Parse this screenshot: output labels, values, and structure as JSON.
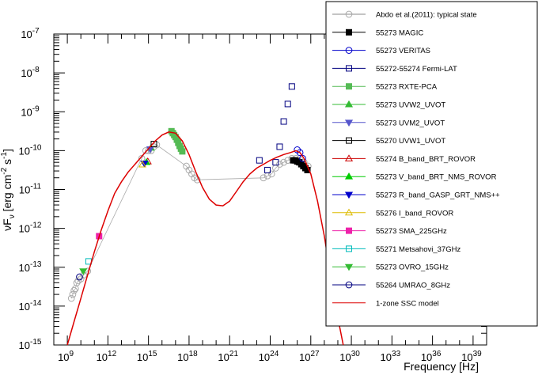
{
  "chart_data": {
    "type": "scatter",
    "title": "",
    "xlabel": "Frequency [Hz]",
    "ylabel_parts": [
      "νF",
      "ν",
      " [erg cm",
      "-2",
      " s",
      "-1",
      "]"
    ],
    "x_log10_range": [
      8,
      40
    ],
    "y_log10_range": [
      -15,
      -7
    ],
    "x_ticks": [
      {
        "base": "10",
        "exp": "9",
        "log": 9
      },
      {
        "base": "10",
        "exp": "12",
        "log": 12
      },
      {
        "base": "10",
        "exp": "15",
        "log": 15
      },
      {
        "base": "10",
        "exp": "18",
        "log": 18
      },
      {
        "base": "10",
        "exp": "21",
        "log": 21
      },
      {
        "base": "10",
        "exp": "24",
        "log": 24
      },
      {
        "base": "10",
        "exp": "27",
        "log": 27
      },
      {
        "base": "10",
        "exp": "30",
        "log": 30
      },
      {
        "base": "10",
        "exp": "33",
        "log": 33
      },
      {
        "base": "10",
        "exp": "36",
        "log": 36
      },
      {
        "base": "10",
        "exp": "39",
        "log": 39
      }
    ],
    "y_ticks": [
      {
        "base": "10",
        "exp": "-15",
        "log": -15
      },
      {
        "base": "10",
        "exp": "-14",
        "log": -14
      },
      {
        "base": "10",
        "exp": "-13",
        "log": -13
      },
      {
        "base": "10",
        "exp": "-12",
        "log": -12
      },
      {
        "base": "10",
        "exp": "-11",
        "log": -11
      },
      {
        "base": "10",
        "exp": "-10",
        "log": -10
      },
      {
        "base": "10",
        "exp": "-9",
        "log": -9
      },
      {
        "base": "10",
        "exp": "-8",
        "log": -8
      },
      {
        "base": "10",
        "exp": "-7",
        "log": -7
      }
    ],
    "legend_placement": "top-right",
    "grid": false,
    "series": [
      {
        "name": "Abdo et al.(2011): typical state",
        "marker": "circle-open",
        "color": "#aaaaaa",
        "line": true,
        "points": [
          [
            9.3,
            -13.8
          ],
          [
            9.4,
            -13.7
          ],
          [
            9.5,
            -13.6
          ],
          [
            9.6,
            -13.55
          ],
          [
            9.7,
            -13.4
          ],
          [
            9.8,
            -13.35
          ],
          [
            10.0,
            -13.3
          ],
          [
            10.2,
            -13.2
          ],
          [
            10.5,
            -13.1
          ],
          [
            14.5,
            -10.2
          ],
          [
            14.8,
            -10.0
          ],
          [
            15.0,
            -10.0
          ],
          [
            15.2,
            -10.0
          ],
          [
            15.4,
            -9.9
          ],
          [
            15.6,
            -9.85
          ],
          [
            17.8,
            -10.4
          ],
          [
            18.0,
            -10.5
          ],
          [
            18.2,
            -10.6
          ],
          [
            18.4,
            -10.7
          ],
          [
            18.6,
            -10.75
          ],
          [
            23.5,
            -10.7
          ],
          [
            23.8,
            -10.65
          ],
          [
            24.1,
            -10.6
          ],
          [
            24.4,
            -10.45
          ],
          [
            24.7,
            -10.35
          ],
          [
            25.0,
            -10.3
          ],
          [
            25.3,
            -10.25
          ],
          [
            25.6,
            -10.2
          ],
          [
            25.9,
            -10.2
          ],
          [
            26.2,
            -10.25
          ],
          [
            26.5,
            -10.3
          ],
          [
            26.8,
            -10.4
          ]
        ]
      },
      {
        "name": "55273 MAGIC",
        "marker": "square-filled",
        "color": "#000000",
        "points": [
          [
            25.7,
            -10.25
          ],
          [
            25.85,
            -10.25
          ],
          [
            26.0,
            -10.28
          ],
          [
            26.15,
            -10.3
          ],
          [
            26.3,
            -10.35
          ],
          [
            26.45,
            -10.4
          ],
          [
            26.6,
            -10.45
          ],
          [
            26.75,
            -10.5
          ]
        ]
      },
      {
        "name": "55273 VERITAS",
        "marker": "circle-open",
        "color": "#0000cc",
        "points": [
          [
            26.0,
            -9.98
          ],
          [
            26.2,
            -10.05
          ],
          [
            26.4,
            -10.2
          ]
        ]
      },
      {
        "name": "55272-55274 Fermi-LAT",
        "marker": "square-open",
        "color": "#000080",
        "points": [
          [
            23.2,
            -10.25
          ],
          [
            23.8,
            -10.5
          ],
          [
            24.4,
            -10.3
          ],
          [
            24.7,
            -9.9
          ],
          [
            25.0,
            -9.25
          ],
          [
            25.3,
            -8.8
          ],
          [
            25.6,
            -8.35
          ]
        ]
      },
      {
        "name": "55273 RXTE-PCA",
        "marker": "square-filled",
        "color": "#55bb55",
        "points": [
          [
            16.7,
            -9.5
          ],
          [
            16.8,
            -9.55
          ],
          [
            16.9,
            -9.6
          ],
          [
            17.0,
            -9.65
          ],
          [
            17.1,
            -9.72
          ],
          [
            17.2,
            -9.8
          ],
          [
            17.3,
            -9.88
          ],
          [
            17.4,
            -9.95
          ],
          [
            17.5,
            -10.02
          ]
        ]
      },
      {
        "name": "55273 UVW2_UVOT",
        "marker": "triangle-up-filled",
        "color": "#33bb33",
        "points": [
          [
            15.18,
            -9.93
          ]
        ]
      },
      {
        "name": "55273 UVM2_UVOT",
        "marker": "triangle-down-filled",
        "color": "#5555cc",
        "points": [
          [
            15.13,
            -9.96
          ]
        ]
      },
      {
        "name": "55270 UVW1_UVOT",
        "marker": "square-open",
        "color": "#000000",
        "points": [
          [
            15.4,
            -9.83
          ]
        ]
      },
      {
        "name": "55274 B_band_BRT_ROVOR",
        "marker": "triangle-up-open",
        "color": "#cc0000",
        "points": [
          [
            14.95,
            -10.28
          ]
        ]
      },
      {
        "name": "55273 V_band_BRT_NMS_ROVOR",
        "marker": "triangle-up-filled",
        "color": "#00cc00",
        "points": [
          [
            14.85,
            -10.3
          ]
        ]
      },
      {
        "name": "55273 R_band_GASP_GRT_NMS++",
        "marker": "triangle-down-filled",
        "color": "#0000cc",
        "points": [
          [
            14.7,
            -10.33
          ]
        ]
      },
      {
        "name": "55276 I_band_ROVOR",
        "marker": "triangle-up-open",
        "color": "#ddbb00",
        "points": [
          [
            14.55,
            -10.36
          ]
        ]
      },
      {
        "name": "55273 SMA_225GHz",
        "marker": "square-filled",
        "color": "#ee22aa",
        "points": [
          [
            11.35,
            -12.2
          ]
        ]
      },
      {
        "name": "55271 Metsahovi_37GHz",
        "marker": "square-open",
        "color": "#00bbbb",
        "points": [
          [
            10.57,
            -12.85
          ]
        ]
      },
      {
        "name": "55273 OVRO_15GHz",
        "marker": "triangle-down-filled",
        "color": "#33bb33",
        "points": [
          [
            10.18,
            -13.1
          ]
        ]
      },
      {
        "name": "55264 UMRAO_8GHz",
        "marker": "circle-open",
        "color": "#000080",
        "points": [
          [
            9.9,
            -13.25
          ]
        ]
      },
      {
        "name": "1-zone SSC model",
        "marker": "line",
        "color": "#dd0000",
        "line": true,
        "points": [
          [
            9.0,
            -15.0
          ],
          [
            9.5,
            -14.4
          ],
          [
            10.0,
            -13.8
          ],
          [
            10.5,
            -13.2
          ],
          [
            11.0,
            -12.6
          ],
          [
            11.5,
            -12.05
          ],
          [
            12.0,
            -11.55
          ],
          [
            12.5,
            -11.1
          ],
          [
            13.0,
            -10.8
          ],
          [
            13.5,
            -10.55
          ],
          [
            14.0,
            -10.35
          ],
          [
            14.5,
            -10.15
          ],
          [
            15.0,
            -9.95
          ],
          [
            15.5,
            -9.75
          ],
          [
            16.0,
            -9.6
          ],
          [
            16.5,
            -9.52
          ],
          [
            17.0,
            -9.55
          ],
          [
            17.5,
            -9.75
          ],
          [
            18.0,
            -10.1
          ],
          [
            18.5,
            -10.55
          ],
          [
            19.0,
            -10.95
          ],
          [
            19.5,
            -11.25
          ],
          [
            20.0,
            -11.4
          ],
          [
            20.5,
            -11.42
          ],
          [
            21.0,
            -11.3
          ],
          [
            21.5,
            -11.05
          ],
          [
            22.0,
            -10.8
          ],
          [
            22.5,
            -10.6
          ],
          [
            23.0,
            -10.45
          ],
          [
            23.5,
            -10.35
          ],
          [
            24.0,
            -10.25
          ],
          [
            24.5,
            -10.17
          ],
          [
            25.0,
            -10.1
          ],
          [
            25.5,
            -10.05
          ],
          [
            25.9,
            -10.0
          ],
          [
            26.2,
            -10.05
          ],
          [
            26.5,
            -10.2
          ],
          [
            27.0,
            -10.6
          ],
          [
            27.5,
            -11.3
          ],
          [
            28.0,
            -12.2
          ],
          [
            28.5,
            -13.3
          ],
          [
            29.0,
            -14.3
          ],
          [
            29.4,
            -15.0
          ]
        ]
      }
    ]
  }
}
